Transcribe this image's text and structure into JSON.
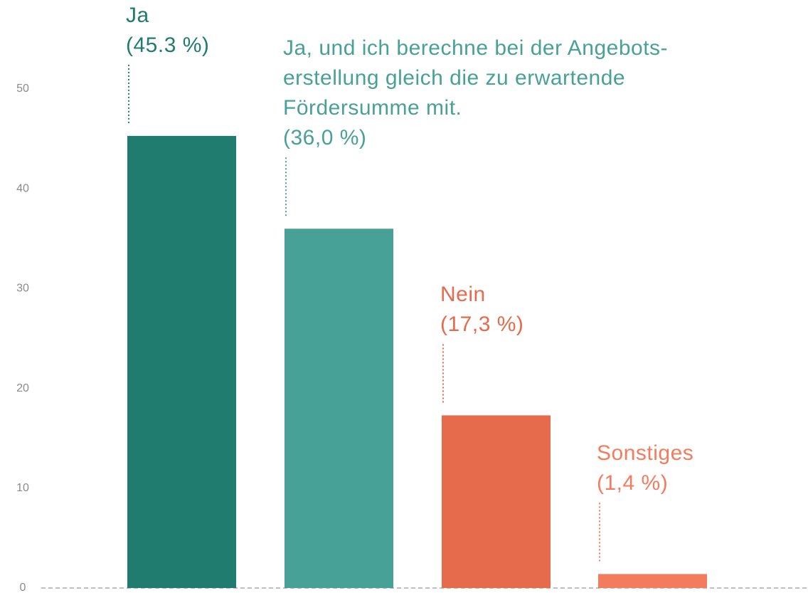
{
  "chart_data": {
    "type": "bar",
    "categories": [
      "Ja",
      "Ja, und ich berechne bei der Angebots-\nerstellung gleich die zu erwartende\nFördersumme mit.",
      "Nein",
      "Sonstiges"
    ],
    "values": [
      45.3,
      36.0,
      17.3,
      1.4
    ],
    "value_labels": [
      "(45.3 %)",
      "(36,0 %)",
      "(17,3 %)",
      "(1,4 %)"
    ],
    "colors": [
      "#217c70",
      "#48a197",
      "#e56b4c",
      "#f47c5e"
    ],
    "ylim": [
      0,
      50
    ],
    "yticks": [
      0,
      10,
      20,
      30,
      40,
      50
    ],
    "grid": false
  }
}
